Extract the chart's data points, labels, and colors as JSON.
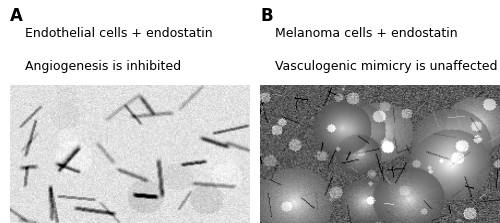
{
  "panel_A_label": "A",
  "panel_B_label": "B",
  "panel_A_line1": "Endothelial cells + endostatin",
  "panel_A_line2": "Angiogenesis is inhibited",
  "panel_B_line1": "Melanoma cells + endostatin",
  "panel_B_line2": "Vasculogenic mimicry is unaffected",
  "bg_color": "#ffffff",
  "text_color": "#000000",
  "label_fontsize": 11,
  "text_fontsize": 9,
  "fig_width": 5.0,
  "fig_height": 2.23,
  "dpi": 100
}
